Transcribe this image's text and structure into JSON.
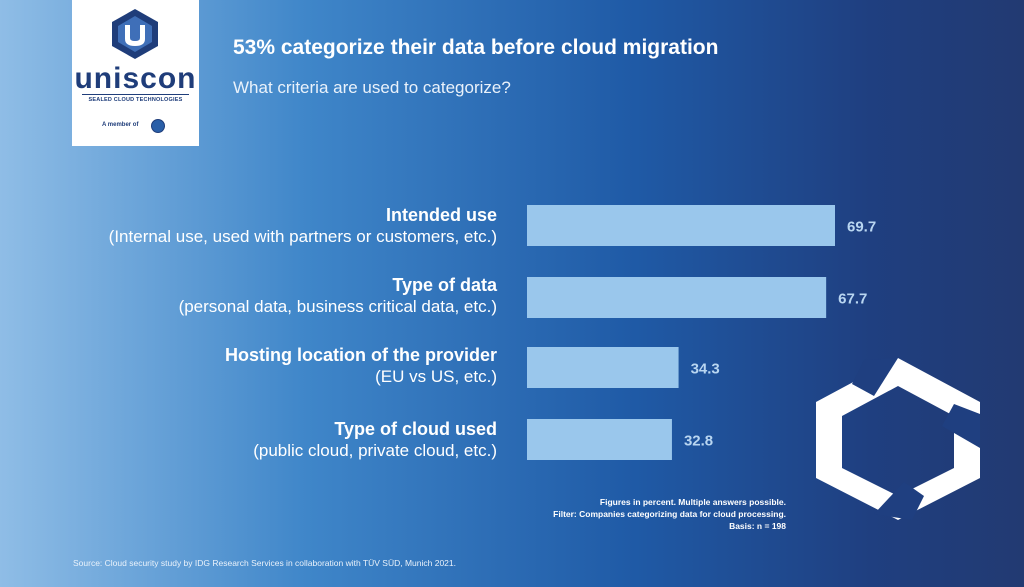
{
  "brand": {
    "name": "uniscon",
    "tagline": "SEALED CLOUD TECHNOLOGIES",
    "member_text": "A member of"
  },
  "title": "53% categorize their data before cloud migration",
  "subtitle": "What criteria are used to categorize?",
  "categories": [
    {
      "label": "Intended use",
      "detail": "(Internal use, used with partners or customers, etc.)"
    },
    {
      "label": "Type of data",
      "detail": "(personal data, business critical data, etc.)"
    },
    {
      "label": "Hosting location of the provider",
      "detail": "(EU vs US, etc.)"
    },
    {
      "label": "Type of cloud used",
      "detail": "(public cloud, private cloud, etc.)"
    }
  ],
  "chart_data": {
    "type": "bar",
    "orientation": "horizontal",
    "categories": [
      "Intended use",
      "Type of data",
      "Hosting location of the provider",
      "Type of cloud used"
    ],
    "values": [
      69.7,
      67.7,
      34.3,
      32.8
    ],
    "value_labels": [
      "69.7",
      "67.7",
      "34.3",
      "32.8"
    ],
    "xlim": [
      0,
      100
    ],
    "grid": false,
    "bar_color": "#9ac7ec"
  },
  "notes": [
    "Figures in percent. Multiple answers possible.",
    "Filter: Companies categorizing data for cloud processing.",
    "Basis: n = 198"
  ],
  "source": "Source: Cloud security study by IDG Research Services in collaboration with TÜV SÜD, Munich 2021.",
  "colors": {
    "brand_navy": "#1f3d7a",
    "bar": "#9ac7ec",
    "value_label": "#b9d6f1"
  }
}
